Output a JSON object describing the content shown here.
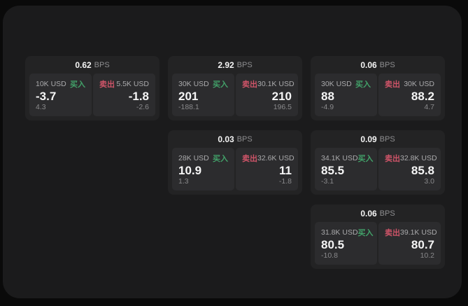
{
  "page": {
    "background": "#0a0a0a",
    "panel_background": "#1b1b1c",
    "card_background": "#232324",
    "tile_background": "#2c2c2e"
  },
  "colors": {
    "buy_green": "#42a169",
    "sell_red": "#ce5468",
    "price_white": "#f5f5f5",
    "muted_gray": "#89898b"
  },
  "labels": {
    "bps_unit": "BPS",
    "buy": "买入",
    "sell": "卖出"
  },
  "cards": [
    {
      "bps": "0.62",
      "buy": {
        "amount": "10K USD",
        "price": "-3.7",
        "delta": "4.3"
      },
      "sell": {
        "amount": "5.5K USD",
        "price": "-1.8",
        "delta": "-2.6"
      }
    },
    {
      "bps": "2.92",
      "buy": {
        "amount": "30K USD",
        "price": "201",
        "delta": "-188.1"
      },
      "sell": {
        "amount": "30.1K USD",
        "price": "210",
        "delta": "196.5"
      }
    },
    {
      "bps": "0.06",
      "buy": {
        "amount": "30K USD",
        "price": "88",
        "delta": "-4.9"
      },
      "sell": {
        "amount": "30K USD",
        "price": "88.2",
        "delta": "4.7"
      }
    },
    {
      "bps": "0.03",
      "buy": {
        "amount": "28K USD",
        "price": "10.9",
        "delta": "1.3"
      },
      "sell": {
        "amount": "32.6K USD",
        "price": "11",
        "delta": "-1.8"
      }
    },
    {
      "bps": "0.09",
      "buy": {
        "amount": "34.1K USD",
        "price": "85.5",
        "delta": "-3.1"
      },
      "sell": {
        "amount": "32.8K USD",
        "price": "85.8",
        "delta": "3.0"
      }
    },
    {
      "bps": "0.06",
      "buy": {
        "amount": "31.8K USD",
        "price": "80.5",
        "delta": "-10.8"
      },
      "sell": {
        "amount": "39.1K USD",
        "price": "80.7",
        "delta": "10.2"
      }
    }
  ]
}
